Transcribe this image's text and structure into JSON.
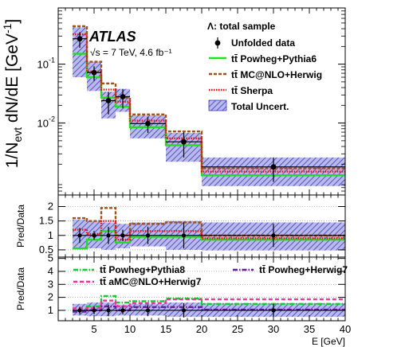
{
  "chart_data": [
    {
      "type": "step-histogram",
      "panel": "main",
      "ylabel": "1/N_evt dN/dE [GeV^-1]",
      "yscale": "log",
      "ylim": [
        0.0006,
        0.9
      ],
      "xlim": [
        0,
        40
      ],
      "y_ticks": [
        {
          "v": 0.1,
          "label": "10^-1"
        },
        {
          "v": 0.01,
          "label": "10^-2"
        }
      ],
      "bins": [
        [
          2,
          4
        ],
        [
          4,
          6
        ],
        [
          6,
          8
        ],
        [
          8,
          10
        ],
        [
          10,
          15
        ],
        [
          15,
          20
        ],
        [
          20,
          40
        ]
      ],
      "atlas_label": "ATLAS",
      "energy_label": "√s = 7 TeV, 4.6 fb⁻¹",
      "legend_title": "Λ: total sample",
      "series": [
        {
          "name": "Unfolded data",
          "kind": "points",
          "color": "#000000",
          "values": [
            0.27,
            0.072,
            0.024,
            0.028,
            0.0098,
            0.0048,
            0.0018
          ],
          "errors": [
            0.08,
            0.02,
            0.01,
            0.01,
            0.003,
            0.0022,
            0.0008
          ]
        },
        {
          "name": "tt̄ Powheg+Pythia6",
          "kind": "line",
          "color": "#22dd22",
          "dash": "",
          "values": [
            0.15,
            0.06,
            0.027,
            0.019,
            0.0085,
            0.0042,
            0.0013
          ]
        },
        {
          "name": "tt̄ MC@NLO+Herwig",
          "kind": "line",
          "color": "#a0521c",
          "dash": "4,2",
          "values": [
            0.44,
            0.11,
            0.047,
            0.027,
            0.014,
            0.0072,
            0.0017
          ]
        },
        {
          "name": "tt̄ Sherpa",
          "kind": "line",
          "color": "#e01010",
          "dash": "1.5,1.5",
          "values": [
            0.32,
            0.075,
            0.037,
            0.023,
            0.011,
            0.0055,
            0.0015
          ]
        },
        {
          "name": "Total Uncert.",
          "kind": "band",
          "color": "#3a3ab8",
          "values": [
            0.27,
            0.072,
            0.024,
            0.028,
            0.0098,
            0.0048,
            0.0018
          ],
          "lo": [
            0.06,
            0.035,
            0.012,
            0.0155,
            0.0055,
            0.0022,
            0.00085
          ],
          "hi": [
            0.42,
            0.11,
            0.034,
            0.038,
            0.0135,
            0.0068,
            0.0026
          ]
        }
      ]
    },
    {
      "type": "step-histogram",
      "panel": "ratio-1",
      "ylabel": "Pred/Data",
      "ylim": [
        0.25,
        2.4
      ],
      "xlim": [
        0,
        40
      ],
      "y_ticks": [
        {
          "v": 0.5,
          "label": "0.5"
        },
        {
          "v": 1,
          "label": "1"
        },
        {
          "v": 1.5,
          "label": "1.5"
        },
        {
          "v": 2,
          "label": "2"
        }
      ],
      "bins": [
        [
          2,
          4
        ],
        [
          4,
          6
        ],
        [
          6,
          8
        ],
        [
          8,
          10
        ],
        [
          10,
          15
        ],
        [
          15,
          20
        ],
        [
          20,
          40
        ]
      ],
      "series": [
        {
          "name": "Unfolded data",
          "kind": "points",
          "color": "#000000",
          "values": [
            1,
            1,
            1,
            1,
            1,
            1,
            1
          ],
          "errors": [
            0.26,
            0.15,
            0.3,
            0.2,
            0.3,
            0.45,
            0.4
          ]
        },
        {
          "name": "tt̄ Powheg+Pythia6",
          "kind": "line",
          "color": "#22dd22",
          "dash": "",
          "values": [
            0.55,
            0.85,
            1.15,
            0.75,
            0.95,
            0.95,
            0.85
          ]
        },
        {
          "name": "tt̄ MC@NLO+Herwig",
          "kind": "line",
          "color": "#a0521c",
          "dash": "4,2",
          "values": [
            1.6,
            1.5,
            1.95,
            1.0,
            1.4,
            1.45,
            1.0
          ]
        },
        {
          "name": "tt̄ Sherpa",
          "kind": "line",
          "color": "#e01010",
          "dash": "1.5,1.5",
          "values": [
            1.2,
            1.05,
            1.5,
            0.85,
            1.15,
            1.15,
            0.9
          ]
        },
        {
          "name": "Total Uncert.",
          "kind": "band",
          "color": "#3a3ab8",
          "values": [
            1,
            1,
            1,
            1,
            1,
            1,
            1
          ],
          "lo": [
            0.58,
            0.55,
            0.5,
            0.55,
            0.62,
            0.5,
            0.48
          ],
          "hi": [
            1.55,
            1.5,
            1.45,
            1.4,
            1.45,
            1.5,
            1.45
          ]
        }
      ]
    },
    {
      "type": "step-histogram",
      "panel": "ratio-2",
      "ylabel": "Pred/Data",
      "xlabel": "E [GeV]",
      "ylim": [
        0.2,
        5.1
      ],
      "xlim": [
        0,
        40
      ],
      "x_ticks": [
        5,
        10,
        15,
        20,
        25,
        30,
        35,
        40
      ],
      "y_ticks": [
        {
          "v": 1,
          "label": "1"
        },
        {
          "v": 2,
          "label": "2"
        },
        {
          "v": 3,
          "label": "3"
        },
        {
          "v": 4,
          "label": "4"
        },
        {
          "v": 5,
          "label": "5"
        }
      ],
      "bins": [
        [
          2,
          4
        ],
        [
          4,
          6
        ],
        [
          6,
          8
        ],
        [
          8,
          10
        ],
        [
          10,
          15
        ],
        [
          15,
          20
        ],
        [
          20,
          40
        ]
      ],
      "series": [
        {
          "name": "Unfolded data",
          "kind": "points",
          "color": "#000000",
          "values": [
            1,
            1,
            1,
            1,
            1,
            1,
            1
          ],
          "errors": [
            0.28,
            0.3,
            0.45,
            0.3,
            0.45,
            0.55,
            0.5
          ]
        },
        {
          "name": "tt̄ Powheg+Pythia8",
          "kind": "line",
          "color": "#11cc33",
          "dash": "6,2,1.5,2",
          "values": [
            0.95,
            1.3,
            2.1,
            1.6,
            1.7,
            1.9,
            1.5
          ]
        },
        {
          "name": "tt̄ Powheg+Herwig7",
          "kind": "line",
          "color": "#6a1a9a",
          "dash": "6,2,1.5,2",
          "values": [
            0.9,
            1.0,
            1.3,
            1.0,
            1.25,
            1.25,
            1.05
          ]
        },
        {
          "name": "tt̄ aMC@NLO+Herwig7",
          "kind": "line",
          "color": "#ee3399",
          "dash": "5,3",
          "values": [
            1.15,
            1.2,
            1.75,
            1.3,
            1.55,
            1.85,
            1.85
          ]
        },
        {
          "name": "Total Uncert.",
          "kind": "band",
          "color": "#3a3ab8",
          "values": [
            1,
            1,
            1,
            1,
            1,
            1,
            1
          ],
          "lo": [
            0.6,
            0.55,
            0.55,
            0.6,
            0.6,
            0.5,
            0.5
          ],
          "hi": [
            1.5,
            1.6,
            1.6,
            1.45,
            1.5,
            1.6,
            1.55
          ]
        }
      ]
    }
  ]
}
